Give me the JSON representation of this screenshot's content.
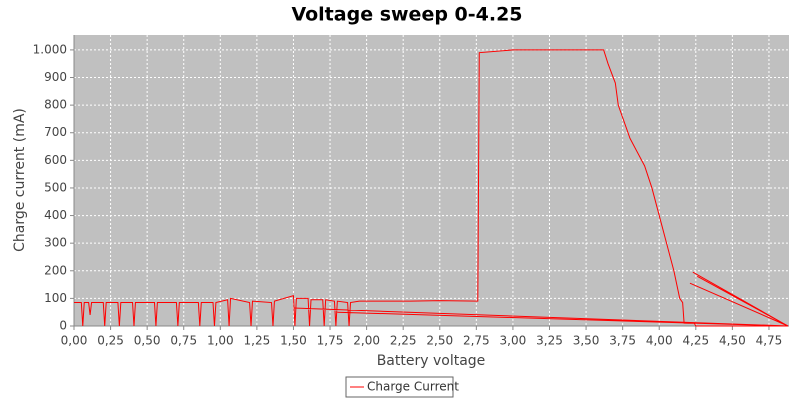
{
  "chart_data": {
    "type": "line",
    "title": "Voltage sweep 0-4.25",
    "x_label": "Battery voltage",
    "y_label": "Charge current (mA)",
    "x": [
      0.0,
      0.05,
      0.06,
      0.07,
      0.1,
      0.11,
      0.12,
      0.2,
      0.21,
      0.22,
      0.3,
      0.31,
      0.32,
      0.4,
      0.41,
      0.42,
      0.55,
      0.56,
      0.57,
      0.7,
      0.71,
      0.72,
      0.85,
      0.86,
      0.87,
      0.95,
      0.96,
      0.97,
      1.05,
      1.06,
      1.07,
      1.2,
      1.21,
      1.22,
      1.35,
      1.36,
      1.37,
      1.5,
      1.51,
      1.52,
      1.6,
      1.61,
      1.62,
      1.7,
      1.71,
      1.72,
      1.78,
      1.79,
      1.8,
      1.87,
      1.88,
      1.89,
      1.95,
      2.3,
      2.5,
      2.76,
      2.77,
      3.0,
      3.3,
      3.62,
      3.65,
      3.7,
      3.72,
      3.8,
      3.9,
      3.95,
      4.0,
      4.05,
      4.1,
      4.14,
      4.16,
      4.17,
      4.24,
      4.25,
      4.88,
      4.21,
      4.88,
      4.26,
      4.88,
      4.23,
      4.88,
      1.5,
      4.88,
      1.8,
      4.88
    ],
    "series": [
      {
        "name": "Charge Current",
        "color": "#ff0000",
        "values": [
          85,
          85,
          0,
          85,
          85,
          40,
          85,
          85,
          0,
          85,
          85,
          0,
          85,
          85,
          0,
          85,
          85,
          0,
          85,
          85,
          0,
          85,
          85,
          0,
          85,
          85,
          0,
          85,
          95,
          0,
          100,
          85,
          0,
          90,
          85,
          0,
          90,
          110,
          0,
          100,
          100,
          0,
          95,
          95,
          0,
          95,
          90,
          0,
          90,
          85,
          0,
          85,
          90,
          90,
          92,
          90,
          990,
          1000,
          1000,
          1000,
          950,
          880,
          800,
          680,
          580,
          500,
          400,
          300,
          200,
          100,
          85,
          10,
          10,
          0,
          0,
          155,
          0,
          180,
          0,
          195,
          0,
          65,
          0,
          50,
          0
        ]
      }
    ],
    "xlim": [
      0,
      4.887
    ],
    "ylim": [
      0,
      1054
    ],
    "xticks": [
      {
        "value": 0,
        "label": "0,00"
      },
      {
        "value": 0.25,
        "label": "0,25"
      },
      {
        "value": 0.5,
        "label": "0,50"
      },
      {
        "value": 0.75,
        "label": "0,75"
      },
      {
        "value": 1,
        "label": "1,00"
      },
      {
        "value": 1.25,
        "label": "1,25"
      },
      {
        "value": 1.5,
        "label": "1,50"
      },
      {
        "value": 1.75,
        "label": "1,75"
      },
      {
        "value": 2,
        "label": "2,00"
      },
      {
        "value": 2.25,
        "label": "2,25"
      },
      {
        "value": 2.5,
        "label": "2,50"
      },
      {
        "value": 2.75,
        "label": "2,75"
      },
      {
        "value": 3,
        "label": "3,00"
      },
      {
        "value": 3.25,
        "label": "3,25"
      },
      {
        "value": 3.5,
        "label": "3,50"
      },
      {
        "value": 3.75,
        "label": "3,75"
      },
      {
        "value": 4,
        "label": "4,00"
      },
      {
        "value": 4.25,
        "label": "4,25"
      },
      {
        "value": 4.5,
        "label": "4,50"
      },
      {
        "value": 4.75,
        "label": "4,75"
      }
    ],
    "yticks": [
      0,
      100,
      200,
      300,
      400,
      500,
      600,
      700,
      800,
      900,
      {
        "value": 1000,
        "label": "1.000"
      }
    ],
    "grid": true,
    "legend": "bottom"
  }
}
